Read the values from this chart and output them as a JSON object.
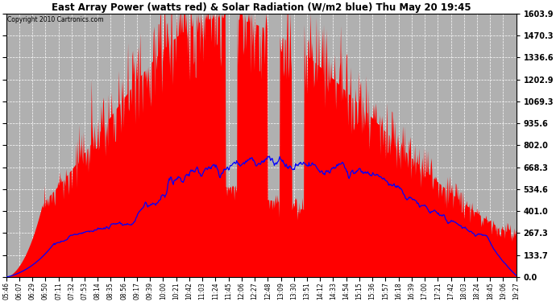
{
  "title": "East Array Power (watts red) & Solar Radiation (W/m2 blue) Thu May 20 19:45",
  "copyright_text": "Copyright 2010 Cartronics.com",
  "yticks": [
    0.0,
    133.7,
    267.3,
    401.0,
    534.6,
    668.3,
    802.0,
    935.6,
    1069.3,
    1202.9,
    1336.6,
    1470.3,
    1603.9
  ],
  "ymax": 1603.9,
  "ymin": 0.0,
  "fill_color": "#ff0000",
  "line_color": "#0000ff",
  "background_color": "#ffffff",
  "plot_bg_color": "#b0b0b0",
  "x_labels": [
    "05:46",
    "06:07",
    "06:29",
    "06:50",
    "07:11",
    "07:32",
    "07:53",
    "08:14",
    "08:35",
    "08:56",
    "09:17",
    "09:39",
    "10:00",
    "10:21",
    "10:42",
    "11:03",
    "11:24",
    "11:45",
    "12:06",
    "12:27",
    "12:48",
    "13:09",
    "13:30",
    "13:51",
    "14:12",
    "14:33",
    "14:54",
    "15:15",
    "15:36",
    "15:57",
    "16:18",
    "16:39",
    "17:00",
    "17:21",
    "17:42",
    "18:03",
    "18:24",
    "18:45",
    "19:06",
    "19:27"
  ]
}
